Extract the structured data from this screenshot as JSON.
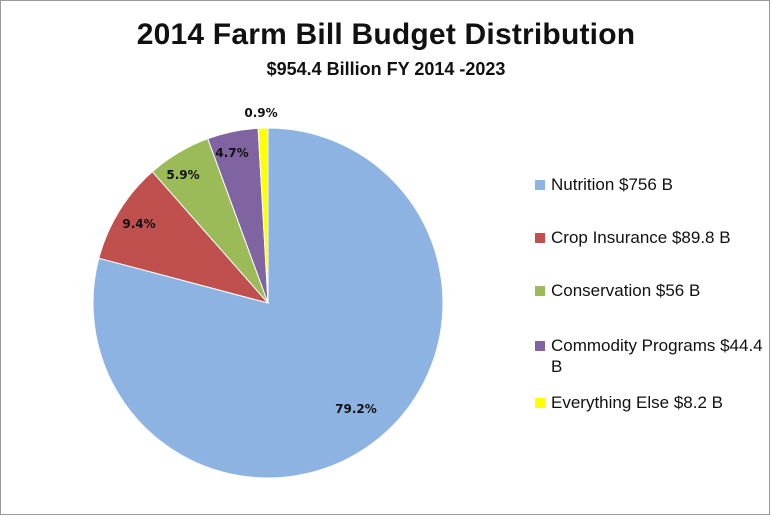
{
  "chart_data": {
    "type": "pie",
    "title": "2014 Farm Bill Budget Distribution",
    "subtitle": "$954.4 Billion FY 2014 -2023",
    "legend_position": "right",
    "slices": [
      {
        "label": "Nutrition $756 B",
        "value": 79.2,
        "data_label": "79.2%",
        "color": "#8db3e2"
      },
      {
        "label": "Crop Insurance $89.8 B",
        "value": 9.4,
        "data_label": "9.4%",
        "color": "#c0504d"
      },
      {
        "label": "Conservation $56 B",
        "value": 5.9,
        "data_label": "5.9%",
        "color": "#9bbb59"
      },
      {
        "label": "Commodity Programs $44.4 B",
        "value": 4.7,
        "data_label": "4.7%",
        "color": "#8064a2"
      },
      {
        "label": "Everything Else $8.2 B",
        "value": 0.9,
        "data_label": "0.9%",
        "color": "#ffff00"
      }
    ]
  }
}
